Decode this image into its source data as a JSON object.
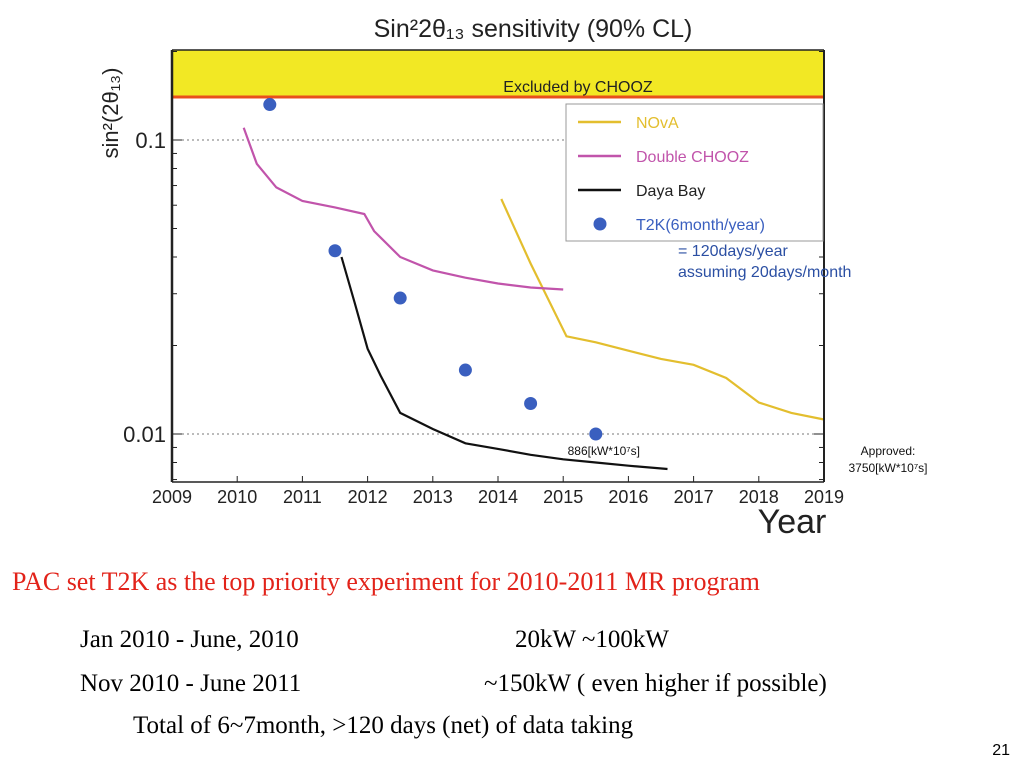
{
  "chart_data": {
    "type": "line",
    "title": "Sin²2θ₁₃ sensitivity (90% CL)",
    "xlabel": "Year",
    "ylabel": "sin²(2θ₁₃)",
    "xlim": [
      2009,
      2019
    ],
    "ylim": [
      0.0075,
      0.2
    ],
    "yscale": "log",
    "xticks": [
      "2009",
      "2010",
      "2011",
      "2012",
      "2013",
      "2014",
      "2015",
      "2016",
      "2017",
      "2018",
      "2019"
    ],
    "yticks": [
      {
        "value": 0.1,
        "label": "0.1"
      },
      {
        "value": 0.01,
        "label": "0.01"
      }
    ],
    "excluded_region": {
      "label": "Excluded by CHOOZ",
      "from": 0.14,
      "color": "#f2e824",
      "edge_color": "#e8501c"
    },
    "legend": {
      "position": "top-right",
      "entries": [
        {
          "label": "NOvA",
          "color": "#e3be2e",
          "kind": "line"
        },
        {
          "label": "Double CHOOZ",
          "color": "#c154ab",
          "kind": "line"
        },
        {
          "label": "Daya Bay",
          "color": "#111111",
          "kind": "line"
        },
        {
          "label": "T2K(6month/year)",
          "color": "#3a5fbf",
          "kind": "marker"
        }
      ]
    },
    "legend_note": [
      "= 120days/year",
      "assuming 20days/month"
    ],
    "series": [
      {
        "name": "NOvA",
        "kind": "line",
        "color": "#e3be2e",
        "x": [
          2014.05,
          2014.5,
          2015.05,
          2015.5,
          2016.0,
          2016.5,
          2017.0,
          2017.5,
          2018.0,
          2018.5,
          2019.0
        ],
        "y": [
          0.063,
          0.038,
          0.0215,
          0.0205,
          0.0192,
          0.018,
          0.0172,
          0.0155,
          0.0128,
          0.0118,
          0.0112
        ]
      },
      {
        "name": "Double CHOOZ",
        "kind": "line",
        "color": "#c154ab",
        "x": [
          2010.1,
          2010.3,
          2010.6,
          2011.0,
          2011.5,
          2011.95,
          2012.1,
          2012.5,
          2013.0,
          2013.5,
          2014.0,
          2014.5,
          2015.0
        ],
        "y": [
          0.11,
          0.083,
          0.069,
          0.062,
          0.059,
          0.056,
          0.049,
          0.04,
          0.036,
          0.034,
          0.0325,
          0.0315,
          0.031
        ]
      },
      {
        "name": "Daya Bay",
        "kind": "line",
        "color": "#111111",
        "x": [
          2011.6,
          2011.8,
          2012.0,
          2012.2,
          2012.5,
          2013.0,
          2013.5,
          2014.0,
          2014.5,
          2015.0,
          2015.5,
          2016.0,
          2016.6
        ],
        "y": [
          0.04,
          0.028,
          0.0195,
          0.0158,
          0.0118,
          0.0104,
          0.0093,
          0.0089,
          0.0085,
          0.0082,
          0.008,
          0.0078,
          0.0076
        ]
      },
      {
        "name": "T2K(6month/year)",
        "kind": "scatter",
        "color": "#3a5fbf",
        "x": [
          2010.5,
          2011.5,
          2012.5,
          2013.5,
          2014.5,
          2015.5
        ],
        "y": [
          0.132,
          0.042,
          0.029,
          0.0165,
          0.0127,
          0.01
        ]
      }
    ],
    "annotations": [
      {
        "text": "886[kW*10⁷s]",
        "x": 2015.5,
        "y": 0.0093
      },
      {
        "text": "Approved:",
        "x": 2019.5,
        "y": 0.0093
      },
      {
        "text": "3750[kW*10⁷s]",
        "x": 2019.5,
        "y": 0.0082
      }
    ]
  },
  "texts": {
    "headline": "PAC set T2K as the top priority experiment for 2010-2011 MR program",
    "row1_left": "Jan 2010 - June, 2010",
    "row1_right": "20kW ~100kW",
    "row2_left": "Nov 2010 - June 2011",
    "row2_right": "~150kW ( even higher if possible)",
    "row3": "Total of 6~7month, >120 days (net) of data taking",
    "page_number": "21"
  }
}
